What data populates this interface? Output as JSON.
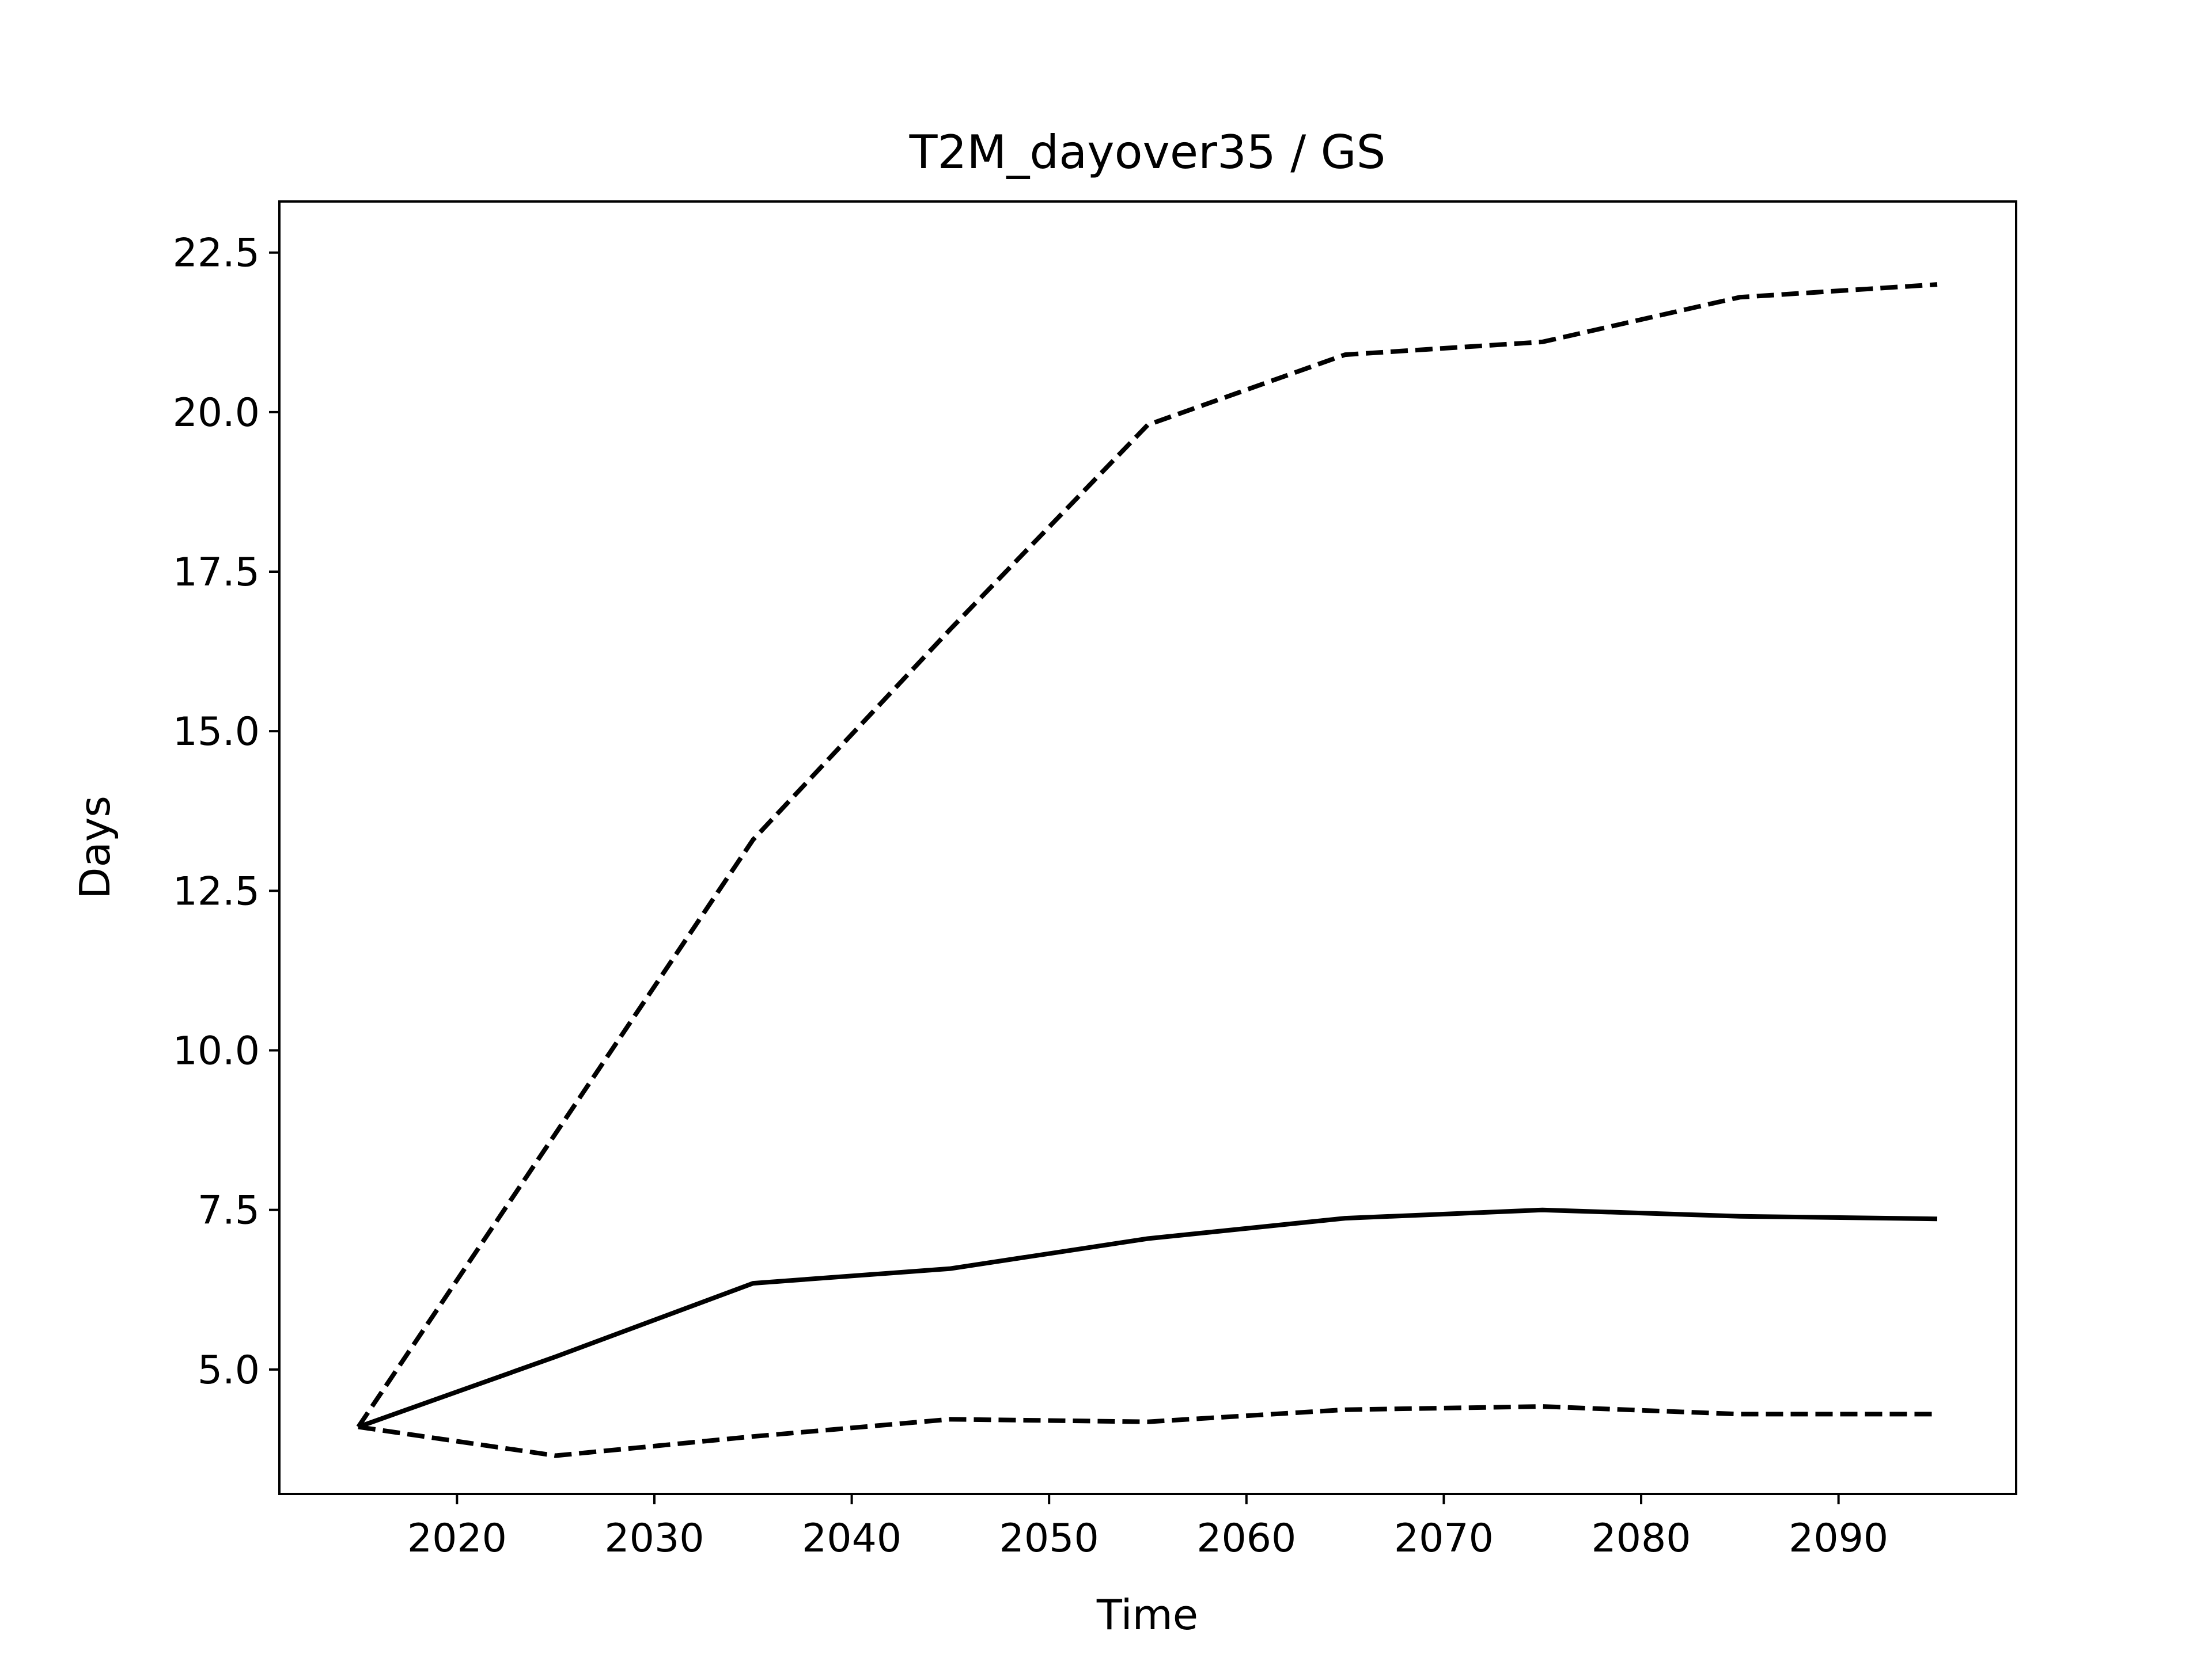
{
  "chart_data": {
    "type": "line",
    "title": "T2M_dayover35 / GS",
    "xlabel": "Time",
    "ylabel": "Days",
    "xlim": [
      2011,
      2099
    ],
    "ylim": [
      3.05,
      23.3
    ],
    "grid": false,
    "legend": "none",
    "x_ticks": [
      2020,
      2030,
      2040,
      2050,
      2060,
      2070,
      2080,
      2090
    ],
    "x_tick_labels": [
      "2020",
      "2030",
      "2040",
      "2050",
      "2060",
      "2070",
      "2080",
      "2090"
    ],
    "y_ticks": [
      5.0,
      7.5,
      10.0,
      12.5,
      15.0,
      17.5,
      20.0,
      22.5
    ],
    "y_tick_labels": [
      "5.0",
      "7.5",
      "10.0",
      "12.5",
      "15.0",
      "17.5",
      "20.0",
      "22.5"
    ],
    "x": [
      2015,
      2025,
      2035,
      2045,
      2055,
      2065,
      2075,
      2085,
      2095
    ],
    "series": [
      {
        "style": "dashed",
        "color": "#000000",
        "values": [
          4.1,
          8.7,
          13.3,
          16.6,
          19.8,
          20.9,
          21.1,
          21.8,
          22.0
        ]
      },
      {
        "style": "solid",
        "color": "#000000",
        "values": [
          4.1,
          5.2,
          6.35,
          6.58,
          7.05,
          7.37,
          7.5,
          7.4,
          7.36
        ]
      },
      {
        "style": "dashed",
        "color": "#000000",
        "values": [
          4.1,
          3.65,
          3.95,
          4.22,
          4.18,
          4.37,
          4.42,
          4.3,
          4.3
        ]
      }
    ]
  }
}
